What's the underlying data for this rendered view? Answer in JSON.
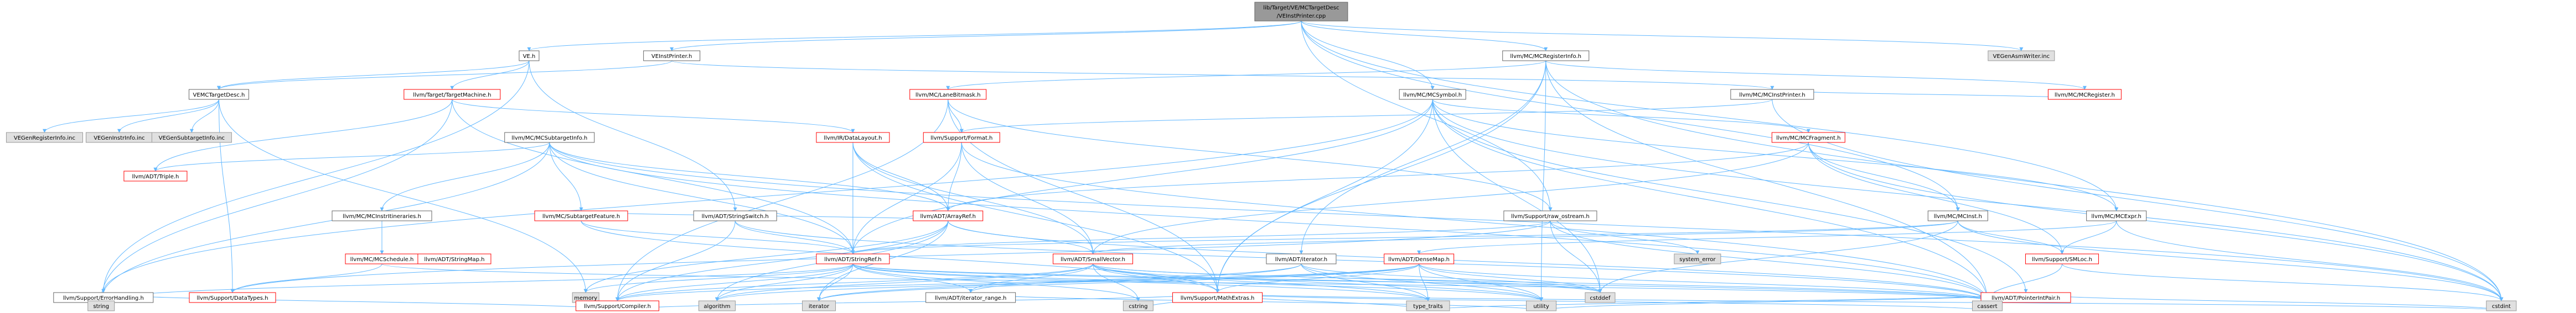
{
  "nodes": [
    {
      "id": "root",
      "lines": [
        "lib/Target/VE/MCTargetDesc",
        "/VEInstPrinter.cpp"
      ],
      "kind": "root"
    },
    {
      "id": "ve_h",
      "lines": [
        "VE.h"
      ],
      "kind": "normal"
    },
    {
      "id": "veinstprinter_h",
      "lines": [
        "VEInstPrinter.h"
      ],
      "kind": "normal"
    },
    {
      "id": "mcregisterinfo",
      "lines": [
        "llvm/MC/MCRegisterInfo.h"
      ],
      "kind": "normal"
    },
    {
      "id": "vegenasmwriter",
      "lines": [
        "VEGenAsmWriter.inc"
      ],
      "kind": "leaf"
    },
    {
      "id": "vemctargetdesc",
      "lines": [
        "VEMCTargetDesc.h"
      ],
      "kind": "normal"
    },
    {
      "id": "targetmachine",
      "lines": [
        "llvm/Target/TargetMachine.h"
      ],
      "kind": "red"
    },
    {
      "id": "lanebitmask",
      "lines": [
        "llvm/MC/LaneBitmask.h"
      ],
      "kind": "red"
    },
    {
      "id": "mcinstprinter",
      "lines": [
        "llvm/MC/MCInstPrinter.h"
      ],
      "kind": "normal"
    },
    {
      "id": "mcregister",
      "lines": [
        "llvm/MC/MCRegister.h"
      ],
      "kind": "red"
    },
    {
      "id": "vegenreginfo",
      "lines": [
        "VEGenRegisterInfo.inc"
      ],
      "kind": "leaf"
    },
    {
      "id": "vegeninstrinfo",
      "lines": [
        "VEGenInstrInfo.inc"
      ],
      "kind": "leaf"
    },
    {
      "id": "vegensubtarget",
      "lines": [
        "VEGenSubtargetInfo.inc"
      ],
      "kind": "leaf"
    },
    {
      "id": "datalayout",
      "lines": [
        "llvm/IR/DataLayout.h"
      ],
      "kind": "red"
    },
    {
      "id": "mcsymbol",
      "lines": [
        "llvm/MC/MCSymbol.h"
      ],
      "kind": "normal"
    },
    {
      "id": "mcsubtargetinfo",
      "lines": [
        "llvm/MC/MCSubtargetInfo.h"
      ],
      "kind": "normal"
    },
    {
      "id": "format",
      "lines": [
        "llvm/Support/Format.h"
      ],
      "kind": "red"
    },
    {
      "id": "mcfragment",
      "lines": [
        "llvm/MC/MCFragment.h"
      ],
      "kind": "red"
    },
    {
      "id": "triple",
      "lines": [
        "llvm/ADT/Triple.h"
      ],
      "kind": "red"
    },
    {
      "id": "mcinstrit",
      "lines": [
        "llvm/MC/MCInstrItineraries.h"
      ],
      "kind": "normal"
    },
    {
      "id": "mcsubtargetfeature",
      "lines": [
        "llvm/MC/SubtargetFeature.h"
      ],
      "kind": "red"
    },
    {
      "id": "stringswitch",
      "lines": [
        "llvm/ADT/StringSwitch.h"
      ],
      "kind": "normal"
    },
    {
      "id": "arrayref",
      "lines": [
        "llvm/ADT/ArrayRef.h"
      ],
      "kind": "red"
    },
    {
      "id": "raw_ostream",
      "lines": [
        "llvm/Support/raw_ostream.h"
      ],
      "kind": "normal"
    },
    {
      "id": "mcinst",
      "lines": [
        "llvm/MC/MCInst.h"
      ],
      "kind": "normal"
    },
    {
      "id": "mcexpr",
      "lines": [
        "llvm/MC/MCExpr.h"
      ],
      "kind": "normal"
    },
    {
      "id": "mcschedule",
      "lines": [
        "llvm/MC/MCSchedule.h"
      ],
      "kind": "red"
    },
    {
      "id": "stringmap",
      "lines": [
        "llvm/ADT/StringMap.h"
      ],
      "kind": "red"
    },
    {
      "id": "stringref",
      "lines": [
        "llvm/ADT/StringRef.h"
      ],
      "kind": "red"
    },
    {
      "id": "smallvector",
      "lines": [
        "llvm/ADT/SmallVector.h"
      ],
      "kind": "red"
    },
    {
      "id": "iterator_h",
      "lines": [
        "llvm/ADT/iterator.h"
      ],
      "kind": "normal"
    },
    {
      "id": "densemap",
      "lines": [
        "llvm/ADT/DenseMap.h"
      ],
      "kind": "red"
    },
    {
      "id": "system_error",
      "lines": [
        "system_error"
      ],
      "kind": "leaf"
    },
    {
      "id": "smloc",
      "lines": [
        "llvm/Support/SMLoc.h"
      ],
      "kind": "red"
    },
    {
      "id": "errorhandling",
      "lines": [
        "llvm/Support/ErrorHandling.h"
      ],
      "kind": "normal"
    },
    {
      "id": "datatypes",
      "lines": [
        "llvm/Support/DataTypes.h"
      ],
      "kind": "red"
    },
    {
      "id": "memory",
      "lines": [
        "memory"
      ],
      "kind": "leaf"
    },
    {
      "id": "iterator_range",
      "lines": [
        "llvm/ADT/iterator_range.h"
      ],
      "kind": "normal"
    },
    {
      "id": "mathextras",
      "lines": [
        "llvm/Support/MathExtras.h"
      ],
      "kind": "red"
    },
    {
      "id": "cstddef",
      "lines": [
        "cstddef"
      ],
      "kind": "leaf"
    },
    {
      "id": "pointerintpair",
      "lines": [
        "llvm/ADT/PointerIntPair.h"
      ],
      "kind": "red"
    },
    {
      "id": "string",
      "lines": [
        "string"
      ],
      "kind": "leaf"
    },
    {
      "id": "compiler",
      "lines": [
        "llvm/Support/Compiler.h"
      ],
      "kind": "red"
    },
    {
      "id": "algorithm",
      "lines": [
        "algorithm"
      ],
      "kind": "leaf"
    },
    {
      "id": "iterator",
      "lines": [
        "iterator"
      ],
      "kind": "leaf"
    },
    {
      "id": "cstring",
      "lines": [
        "cstring"
      ],
      "kind": "leaf"
    },
    {
      "id": "type_traits",
      "lines": [
        "type_traits"
      ],
      "kind": "leaf"
    },
    {
      "id": "utility",
      "lines": [
        "utility"
      ],
      "kind": "leaf"
    },
    {
      "id": "cassert",
      "lines": [
        "cassert"
      ],
      "kind": "leaf"
    },
    {
      "id": "cstdint",
      "lines": [
        "cstdint"
      ],
      "kind": "leaf"
    }
  ],
  "edges": [
    [
      "root",
      "ve_h"
    ],
    [
      "root",
      "veinstprinter_h"
    ],
    [
      "root",
      "mcregisterinfo"
    ],
    [
      "root",
      "vegenasmwriter"
    ],
    [
      "root",
      "mcinst"
    ],
    [
      "root",
      "mcexpr"
    ],
    [
      "root",
      "mcsymbol"
    ],
    [
      "root",
      "raw_ostream"
    ],
    [
      "ve_h",
      "vemctargetdesc"
    ],
    [
      "ve_h",
      "targetmachine"
    ],
    [
      "ve_h",
      "errorhandling"
    ],
    [
      "ve_h",
      "stringswitch"
    ],
    [
      "veinstprinter_h",
      "vemctargetdesc"
    ],
    [
      "veinstprinter_h",
      "mcinstprinter"
    ],
    [
      "vemctargetdesc",
      "vegenreginfo"
    ],
    [
      "vemctargetdesc",
      "vegeninstrinfo"
    ],
    [
      "vemctargetdesc",
      "vegensubtarget"
    ],
    [
      "vemctargetdesc",
      "datatypes"
    ],
    [
      "vemctargetdesc",
      "memory"
    ],
    [
      "targetmachine",
      "datalayout"
    ],
    [
      "targetmachine",
      "triple"
    ],
    [
      "targetmachine",
      "string"
    ],
    [
      "targetmachine",
      "stringref"
    ],
    [
      "mcregisterinfo",
      "lanebitmask"
    ],
    [
      "mcregisterinfo",
      "mcregister"
    ],
    [
      "mcregisterinfo",
      "iterator_h"
    ],
    [
      "mcregisterinfo",
      "mathextras"
    ],
    [
      "mcregisterinfo",
      "cstdint"
    ],
    [
      "mcregisterinfo",
      "cassert"
    ],
    [
      "mcregisterinfo",
      "utility"
    ],
    [
      "mcinstprinter",
      "format"
    ],
    [
      "mcinstprinter",
      "cstdint"
    ],
    [
      "mcinstprinter",
      "mcregister"
    ],
    [
      "mcsymbol",
      "mcfragment"
    ],
    [
      "mcsymbol",
      "stringref"
    ],
    [
      "mcsymbol",
      "errorhandling"
    ],
    [
      "mcsymbol",
      "mathextras"
    ],
    [
      "mcsymbol",
      "pointerintpair"
    ],
    [
      "mcsymbol",
      "cassert"
    ],
    [
      "mcsymbol",
      "cstddef"
    ],
    [
      "mcsymbol",
      "cstdint"
    ],
    [
      "mcsymbol",
      "mcexpr"
    ],
    [
      "lanebitmask",
      "format"
    ],
    [
      "lanebitmask",
      "compiler"
    ],
    [
      "lanebitmask",
      "mathextras"
    ],
    [
      "lanebitmask",
      "raw_ostream"
    ],
    [
      "datalayout",
      "arrayref"
    ],
    [
      "datalayout",
      "stringref"
    ],
    [
      "datalayout",
      "smallvector"
    ],
    [
      "datalayout",
      "mathextras"
    ],
    [
      "mcsubtargetinfo",
      "arrayref"
    ],
    [
      "mcsubtargetinfo",
      "triple"
    ],
    [
      "mcsubtargetinfo",
      "mcinstrit"
    ],
    [
      "mcsubtargetinfo",
      "mcsubtargetfeature"
    ],
    [
      "mcsubtargetinfo",
      "stringref"
    ],
    [
      "mcsubtargetinfo",
      "cassert"
    ],
    [
      "mcsubtargetinfo",
      "cstdint"
    ],
    [
      "mcsubtargetinfo",
      "string"
    ],
    [
      "format",
      "arrayref"
    ],
    [
      "format",
      "stringref"
    ],
    [
      "format",
      "smallvector"
    ],
    [
      "format",
      "cassert"
    ],
    [
      "mcfragment",
      "arrayref"
    ],
    [
      "mcfragment",
      "smallvector"
    ],
    [
      "mcfragment",
      "mcinst"
    ],
    [
      "mcfragment",
      "smloc"
    ],
    [
      "mcfragment",
      "cstdint"
    ],
    [
      "mcinstrit",
      "mcschedule"
    ],
    [
      "mcschedule",
      "datatypes"
    ],
    [
      "mcschedule",
      "cassert"
    ],
    [
      "mcsubtargetfeature",
      "arrayref"
    ],
    [
      "mcsubtargetfeature",
      "stringref"
    ],
    [
      "mcsubtargetfeature",
      "mathextras"
    ],
    [
      "stringswitch",
      "stringref"
    ],
    [
      "stringswitch",
      "compiler"
    ],
    [
      "stringswitch",
      "cassert"
    ],
    [
      "arrayref",
      "smallvector"
    ],
    [
      "arrayref",
      "compiler"
    ],
    [
      "arrayref",
      "algorithm"
    ],
    [
      "arrayref",
      "iterator"
    ],
    [
      "arrayref",
      "memory"
    ],
    [
      "arrayref",
      "cassert"
    ],
    [
      "raw_ostream",
      "stringref"
    ],
    [
      "raw_ostream",
      "datatypes"
    ],
    [
      "raw_ostream",
      "cassert"
    ],
    [
      "raw_ostream",
      "system_error"
    ],
    [
      "raw_ostream",
      "cstddef"
    ],
    [
      "mcinst",
      "smloc"
    ],
    [
      "mcinst",
      "smallvector"
    ],
    [
      "mcinst",
      "stringref"
    ],
    [
      "mcinst",
      "cstddef"
    ],
    [
      "mcinst",
      "cstdint"
    ],
    [
      "mcexpr",
      "smloc"
    ],
    [
      "mcexpr",
      "densemap"
    ],
    [
      "mcexpr",
      "cstdint"
    ],
    [
      "stringref",
      "iterator_range"
    ],
    [
      "stringref",
      "compiler"
    ],
    [
      "stringref",
      "algorithm"
    ],
    [
      "stringref",
      "cassert"
    ],
    [
      "stringref",
      "cstddef"
    ],
    [
      "stringref",
      "cstring"
    ],
    [
      "stringref",
      "string"
    ],
    [
      "stringref",
      "type_traits"
    ],
    [
      "stringref",
      "utility"
    ],
    [
      "stringref",
      "iterator"
    ],
    [
      "stringref",
      "memory"
    ],
    [
      "smallvector",
      "compiler"
    ],
    [
      "smallvector",
      "mathextras"
    ],
    [
      "smallvector",
      "type_traits"
    ],
    [
      "smallvector",
      "utility"
    ],
    [
      "smallvector",
      "iterator_range"
    ],
    [
      "smallvector",
      "algorithm"
    ],
    [
      "smallvector",
      "cassert"
    ],
    [
      "smallvector",
      "cstddef"
    ],
    [
      "smallvector",
      "cstring"
    ],
    [
      "iterator_h",
      "iterator_range"
    ],
    [
      "iterator_h",
      "cstddef"
    ],
    [
      "iterator_h",
      "iterator"
    ],
    [
      "iterator_h",
      "type_traits"
    ],
    [
      "iterator_h",
      "utility"
    ],
    [
      "densemap",
      "mathextras"
    ],
    [
      "densemap",
      "compiler"
    ],
    [
      "densemap",
      "algorithm"
    ],
    [
      "densemap",
      "cassert"
    ],
    [
      "densemap",
      "cstddef"
    ],
    [
      "densemap",
      "iterator"
    ],
    [
      "densemap",
      "type_traits"
    ],
    [
      "densemap",
      "utility"
    ],
    [
      "smloc",
      "cassert"
    ],
    [
      "smloc",
      "cstdint"
    ],
    [
      "errorhandling",
      "compiler"
    ],
    [
      "errorhandling",
      "string"
    ],
    [
      "iterator_range",
      "utility"
    ],
    [
      "mathextras",
      "compiler"
    ],
    [
      "mathextras",
      "cassert"
    ],
    [
      "mathextras",
      "cstring"
    ],
    [
      "mathextras",
      "type_traits"
    ],
    [
      "mathextras",
      "cstdint"
    ],
    [
      "pointerintpair",
      "cassert"
    ],
    [
      "pointerintpair",
      "cstdint"
    ],
    [
      "pointerintpair",
      "type_traits"
    ],
    [
      "pointerintpair",
      "utility"
    ]
  ],
  "colors": {
    "root_fill": "#999999",
    "normal_fill": "#ffffff",
    "normal_stroke": "#666666",
    "red_stroke": "#ff0000",
    "leaf_fill": "#e0e0e0",
    "leaf_stroke": "#999999",
    "edge": "#63b8ff"
  }
}
